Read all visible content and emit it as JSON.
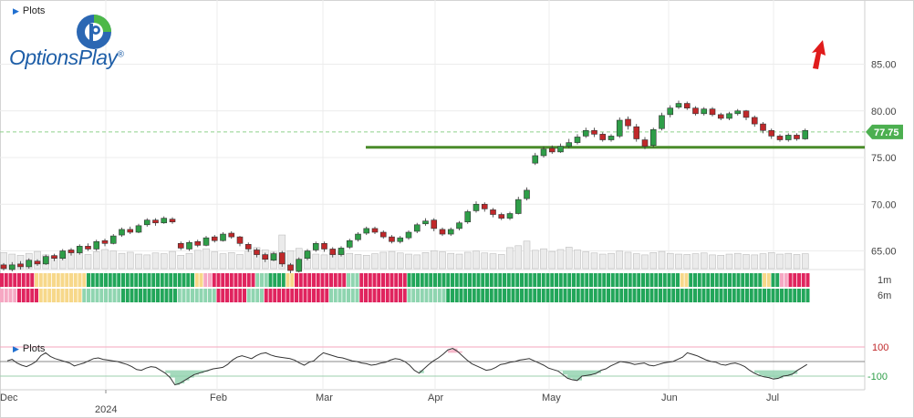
{
  "toolbar": {
    "plots_label": "Plots",
    "sub_plots_label": "Plots"
  },
  "logo": {
    "name": "OptionsPlay",
    "mark": "®"
  },
  "icons": {
    "collapse": "triangle-right-icon",
    "signal": "up-arrow-icon"
  },
  "colors": {
    "up": "#2e9e48",
    "down": "#c0282a",
    "support": "#4a8c2a",
    "arrow": "#e01b1b",
    "price_tag": "#4caf50",
    "pink_fill": "#f4a6bd",
    "green_fill": "#8fd1ad"
  },
  "chart_data": [
    {
      "type": "candlestick",
      "price_axis": {
        "ticks": [
          "65.00",
          "70.00",
          "75.00",
          "80.00",
          "85.00"
        ],
        "ylim": [
          63,
          88
        ]
      },
      "time_axis": {
        "labels": [
          "Dec",
          "2024",
          "Feb",
          "Mar",
          "Apr",
          "May",
          "Jun",
          "Jul"
        ]
      },
      "last_price": "77.75",
      "support_level": 76.1,
      "grid": true,
      "candles": [
        [
          63.5,
          63.1,
          63.7,
          62.9
        ],
        [
          63.0,
          63.5,
          63.8,
          62.8
        ],
        [
          63.6,
          63.3,
          63.9,
          63.0
        ],
        [
          63.3,
          64.0,
          64.2,
          63.1
        ],
        [
          63.9,
          63.6,
          64.1,
          63.4
        ],
        [
          63.6,
          64.4,
          64.6,
          63.5
        ],
        [
          64.5,
          64.2,
          64.7,
          63.9
        ],
        [
          64.2,
          65.0,
          65.2,
          64.0
        ],
        [
          65.1,
          64.8,
          65.3,
          64.5
        ],
        [
          64.8,
          65.5,
          65.7,
          64.6
        ],
        [
          65.5,
          65.2,
          65.8,
          65.0
        ],
        [
          65.2,
          66.0,
          66.2,
          65.0
        ],
        [
          66.1,
          65.8,
          66.3,
          65.5
        ],
        [
          65.8,
          66.6,
          66.8,
          65.7
        ],
        [
          66.7,
          67.3,
          67.5,
          66.5
        ],
        [
          67.3,
          67.0,
          67.6,
          66.8
        ],
        [
          67.0,
          67.7,
          67.9,
          66.9
        ],
        [
          67.8,
          68.3,
          68.5,
          67.6
        ],
        [
          68.3,
          68.0,
          68.5,
          67.7
        ],
        [
          68.0,
          68.5,
          68.7,
          67.9
        ],
        [
          68.4,
          68.1,
          68.6,
          67.9
        ],
        [
          65.8,
          65.3,
          66.0,
          65.1
        ],
        [
          65.2,
          65.9,
          66.1,
          65.0
        ],
        [
          66.0,
          65.6,
          66.2,
          65.4
        ],
        [
          65.6,
          66.4,
          66.6,
          65.5
        ],
        [
          66.5,
          66.1,
          66.7,
          65.9
        ],
        [
          66.1,
          66.8,
          67.0,
          66.0
        ],
        [
          66.9,
          66.5,
          67.1,
          66.3
        ],
        [
          66.5,
          65.8,
          66.6,
          65.5
        ],
        [
          65.7,
          65.2,
          65.9,
          64.9
        ],
        [
          65.1,
          64.6,
          65.3,
          64.3
        ],
        [
          64.6,
          64.1,
          64.8,
          63.8
        ],
        [
          64.0,
          64.7,
          64.9,
          63.9
        ],
        [
          64.8,
          63.6,
          65.0,
          63.3
        ],
        [
          63.5,
          62.9,
          63.7,
          62.6
        ],
        [
          62.8,
          64.1,
          64.3,
          62.7
        ],
        [
          64.2,
          65.0,
          65.2,
          64.0
        ],
        [
          65.1,
          65.8,
          66.0,
          64.9
        ],
        [
          65.8,
          65.2,
          66.0,
          64.9
        ],
        [
          65.2,
          64.6,
          65.4,
          64.3
        ],
        [
          64.6,
          65.3,
          65.5,
          64.4
        ],
        [
          65.4,
          66.1,
          66.3,
          65.2
        ],
        [
          66.2,
          66.8,
          67.0,
          66.0
        ],
        [
          66.9,
          67.4,
          67.6,
          66.7
        ],
        [
          67.4,
          67.0,
          67.6,
          66.8
        ],
        [
          67.0,
          66.5,
          67.2,
          66.3
        ],
        [
          66.5,
          66.0,
          66.7,
          65.8
        ],
        [
          66.0,
          66.4,
          66.6,
          65.8
        ],
        [
          66.4,
          67.0,
          67.2,
          66.2
        ],
        [
          67.1,
          67.8,
          68.0,
          66.9
        ],
        [
          67.9,
          68.2,
          68.5,
          67.7
        ],
        [
          68.3,
          67.4,
          68.5,
          67.1
        ],
        [
          67.3,
          66.8,
          67.5,
          66.6
        ],
        [
          66.8,
          67.3,
          67.5,
          66.6
        ],
        [
          67.4,
          68.0,
          68.2,
          67.2
        ],
        [
          68.1,
          69.2,
          69.4,
          67.9
        ],
        [
          69.3,
          70.0,
          70.3,
          69.1
        ],
        [
          70.0,
          69.5,
          70.2,
          69.2
        ],
        [
          69.4,
          68.9,
          69.6,
          68.6
        ],
        [
          68.9,
          68.5,
          69.1,
          68.3
        ],
        [
          68.5,
          69.0,
          69.2,
          68.3
        ],
        [
          69.0,
          70.5,
          70.8,
          68.9
        ],
        [
          70.6,
          71.5,
          71.8,
          70.4
        ],
        [
          74.4,
          75.2,
          75.5,
          74.2
        ],
        [
          75.2,
          75.9,
          76.2,
          75.0
        ],
        [
          76.0,
          75.6,
          76.3,
          75.4
        ],
        [
          75.6,
          76.2,
          76.5,
          75.5
        ],
        [
          76.2,
          76.6,
          77.0,
          76.0
        ],
        [
          76.6,
          77.2,
          77.5,
          76.4
        ],
        [
          77.3,
          77.9,
          78.2,
          77.1
        ],
        [
          77.9,
          77.5,
          78.2,
          77.2
        ],
        [
          77.5,
          76.9,
          77.7,
          76.7
        ],
        [
          76.9,
          77.3,
          77.5,
          76.7
        ],
        [
          77.3,
          79.0,
          79.3,
          77.1
        ],
        [
          79.1,
          78.4,
          79.4,
          78.0
        ],
        [
          78.3,
          77.0,
          78.6,
          76.7
        ],
        [
          76.9,
          76.2,
          77.2,
          75.9
        ],
        [
          76.3,
          78.0,
          78.2,
          76.1
        ],
        [
          78.1,
          79.5,
          79.8,
          77.9
        ],
        [
          79.6,
          80.3,
          80.6,
          79.3
        ],
        [
          80.4,
          80.8,
          81.1,
          80.2
        ],
        [
          80.8,
          80.3,
          81.0,
          80.1
        ],
        [
          80.3,
          79.7,
          80.5,
          79.5
        ],
        [
          79.7,
          80.2,
          80.4,
          79.5
        ],
        [
          80.2,
          79.6,
          80.4,
          79.4
        ],
        [
          79.6,
          79.2,
          79.8,
          79.0
        ],
        [
          79.2,
          79.7,
          79.9,
          79.0
        ],
        [
          79.7,
          80.0,
          80.2,
          79.5
        ],
        [
          80.0,
          79.3,
          80.1,
          79.0
        ],
        [
          79.3,
          78.6,
          79.5,
          78.3
        ],
        [
          78.6,
          77.9,
          78.8,
          77.6
        ],
        [
          77.9,
          77.3,
          78.1,
          77.0
        ],
        [
          77.3,
          76.9,
          77.5,
          76.7
        ],
        [
          76.9,
          77.4,
          77.6,
          76.7
        ],
        [
          77.4,
          77.0,
          77.6,
          76.8
        ],
        [
          77.0,
          77.9,
          78.1,
          76.9
        ]
      ],
      "volume": [
        42,
        38,
        35,
        40,
        45,
        36,
        33,
        39,
        47,
        41,
        37,
        44,
        50,
        46,
        40,
        43,
        38,
        36,
        41,
        39,
        45,
        35,
        40,
        48,
        52,
        44,
        39,
        42,
        37,
        46,
        55,
        49,
        43,
        88,
        47,
        53,
        42,
        38,
        36,
        41,
        44,
        40,
        37,
        35,
        39,
        43,
        45,
        41,
        38,
        36,
        42,
        47,
        44,
        40,
        38,
        43,
        46,
        41,
        39,
        37,
        55,
        60,
        72,
        48,
        52,
        45,
        50,
        56,
        49,
        44,
        41,
        38,
        40,
        46,
        43,
        39,
        36,
        42,
        45,
        40,
        38,
        37,
        39,
        41,
        36,
        35,
        38,
        40,
        37,
        36,
        39,
        42,
        38,
        40,
        37,
        39
      ]
    },
    {
      "type": "heatmap",
      "rows": [
        "1m",
        "6m"
      ],
      "palette": {
        "R": "#e0245e",
        "P": "#f6a8c3",
        "Y": "#f7d88a",
        "L": "#8fd5b0",
        "G": "#22a65a"
      },
      "cells": [
        "RRRRRRRRYYYYYYYYYYYYGGGGGGGGGGGGGGGGGGGGGGGGGYYPPRRRRRRRRRRLLLGGGGYYRRRRRRRRRRRRLLLRRRRRRRRRRRGGGGGGGGGGGGGGGGGGGGGGGGGGGGGGGGGGGGGGGGGGGGGGGGGGGGGGGGGGGGGGGYYGGGGGGGGGGGGGGGGGYYGGPPRRRRRRRRR",
        "PPPPRRRRRYYYYYYYYYYLLLLLLLLLGGGGGGGGGGGGGLLLLLLLLLRRRRRRRLLLLRRRRRRRRRRRRRRRLLLLLLLRRRRRRRRRRRLLLLLLLLLGGGGGGGGGGGGGGGGGGGGGGGGGGGGGGGGGGGGGGGGGGGGGGGGGGGGGGGGGGGGGGGGGGGGGGGGGGGGGGGGGGGGGYYYYYYYYY"
      ]
    },
    {
      "type": "line",
      "axis_ticks": [
        "100",
        "-100"
      ],
      "values": [
        5,
        15,
        -10,
        -25,
        -35,
        -20,
        0,
        40,
        60,
        35,
        20,
        10,
        0,
        -10,
        -30,
        -20,
        -10,
        5,
        20,
        25,
        15,
        10,
        5,
        0,
        -10,
        -20,
        -35,
        -55,
        -60,
        -45,
        -35,
        -40,
        -60,
        -80,
        -110,
        -160,
        -150,
        -130,
        -110,
        -90,
        -80,
        -70,
        -60,
        -50,
        -45,
        -40,
        -20,
        10,
        30,
        40,
        30,
        20,
        40,
        55,
        60,
        45,
        35,
        30,
        25,
        20,
        10,
        -10,
        -25,
        -5,
        5,
        35,
        60,
        50,
        40,
        30,
        25,
        15,
        5,
        0,
        -10,
        -15,
        -25,
        -20,
        -10,
        -5,
        10,
        20,
        15,
        0,
        -25,
        -60,
        -80,
        -50,
        -20,
        5,
        25,
        50,
        80,
        90,
        70,
        40,
        10,
        -15,
        -30,
        -45,
        -60,
        -55,
        -40,
        -20,
        -15,
        -5,
        0,
        10,
        15,
        20,
        5,
        -10,
        -25,
        -45,
        -55,
        -65,
        -90,
        -115,
        -125,
        -130,
        -100,
        -95,
        -90,
        -80,
        -60,
        -50,
        -30,
        -15,
        0,
        -5,
        -10,
        -20,
        -15,
        -10,
        -25,
        -30,
        -20,
        -10,
        -5,
        0,
        15,
        30,
        60,
        50,
        40,
        25,
        10,
        0,
        -5,
        -20,
        -25,
        -15,
        -10,
        -20,
        -35,
        -60,
        -80,
        -95,
        -105,
        -110,
        -120,
        -115,
        -100,
        -95,
        -85,
        -60,
        -40,
        -20
      ],
      "upper": 100,
      "lower": -100
    }
  ]
}
